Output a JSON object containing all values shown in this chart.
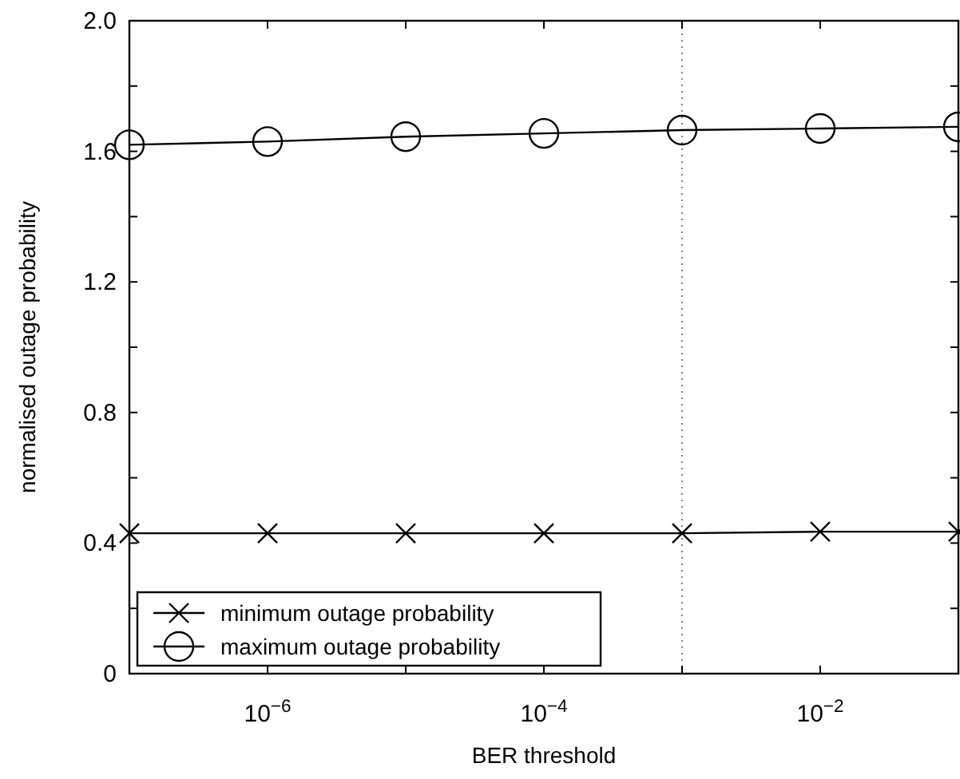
{
  "chart_data": {
    "type": "line",
    "xlabel": "BER threshold",
    "ylabel": "normalised outage probability",
    "log": "x",
    "x": [
      1e-07,
      1e-06,
      1e-05,
      0.0001,
      0.001,
      0.01,
      0.1
    ],
    "xlim": [
      1e-07,
      0.1
    ],
    "xticks": [
      {
        "value": 1e-07,
        "label": null
      },
      {
        "value": 1e-06,
        "label": "10$^{−6}$"
      },
      {
        "value": 1e-05,
        "label": null
      },
      {
        "value": 0.0001,
        "label": "10$^{−4}$"
      },
      {
        "value": 0.001,
        "label": null
      },
      {
        "value": 0.01,
        "label": "10$^{−2}$"
      },
      {
        "value": 0.1,
        "label": null
      }
    ],
    "ylim": [
      0,
      2
    ],
    "yticks": [
      0,
      {
        "value": 0.2,
        "label": null
      },
      0.4,
      {
        "value": 0.6,
        "label": null
      },
      0.8,
      {
        "value": 1.0,
        "label": null
      },
      1.2,
      {
        "value": 1.4,
        "label": null
      },
      1.6,
      {
        "value": 1.8,
        "label": null
      },
      "2.0"
    ],
    "series": [
      {
        "name": "minimum outage probability",
        "color": "#000000",
        "marker": "cross",
        "values": [
          0.43,
          0.43,
          0.43,
          0.43,
          0.43,
          0.435,
          0.435
        ]
      },
      {
        "name": "maximum outage probability",
        "color": "#000000",
        "marker": "circle",
        "values": [
          1.62,
          1.63,
          1.645,
          1.655,
          1.665,
          1.67,
          1.675
        ]
      }
    ],
    "ref_lines": [
      {
        "axis": "x",
        "value": 0.001,
        "color": "#808080",
        "line_style": "dotted"
      }
    ],
    "legend": "bottom left",
    "grid": false,
    "line_style": "solid"
  }
}
